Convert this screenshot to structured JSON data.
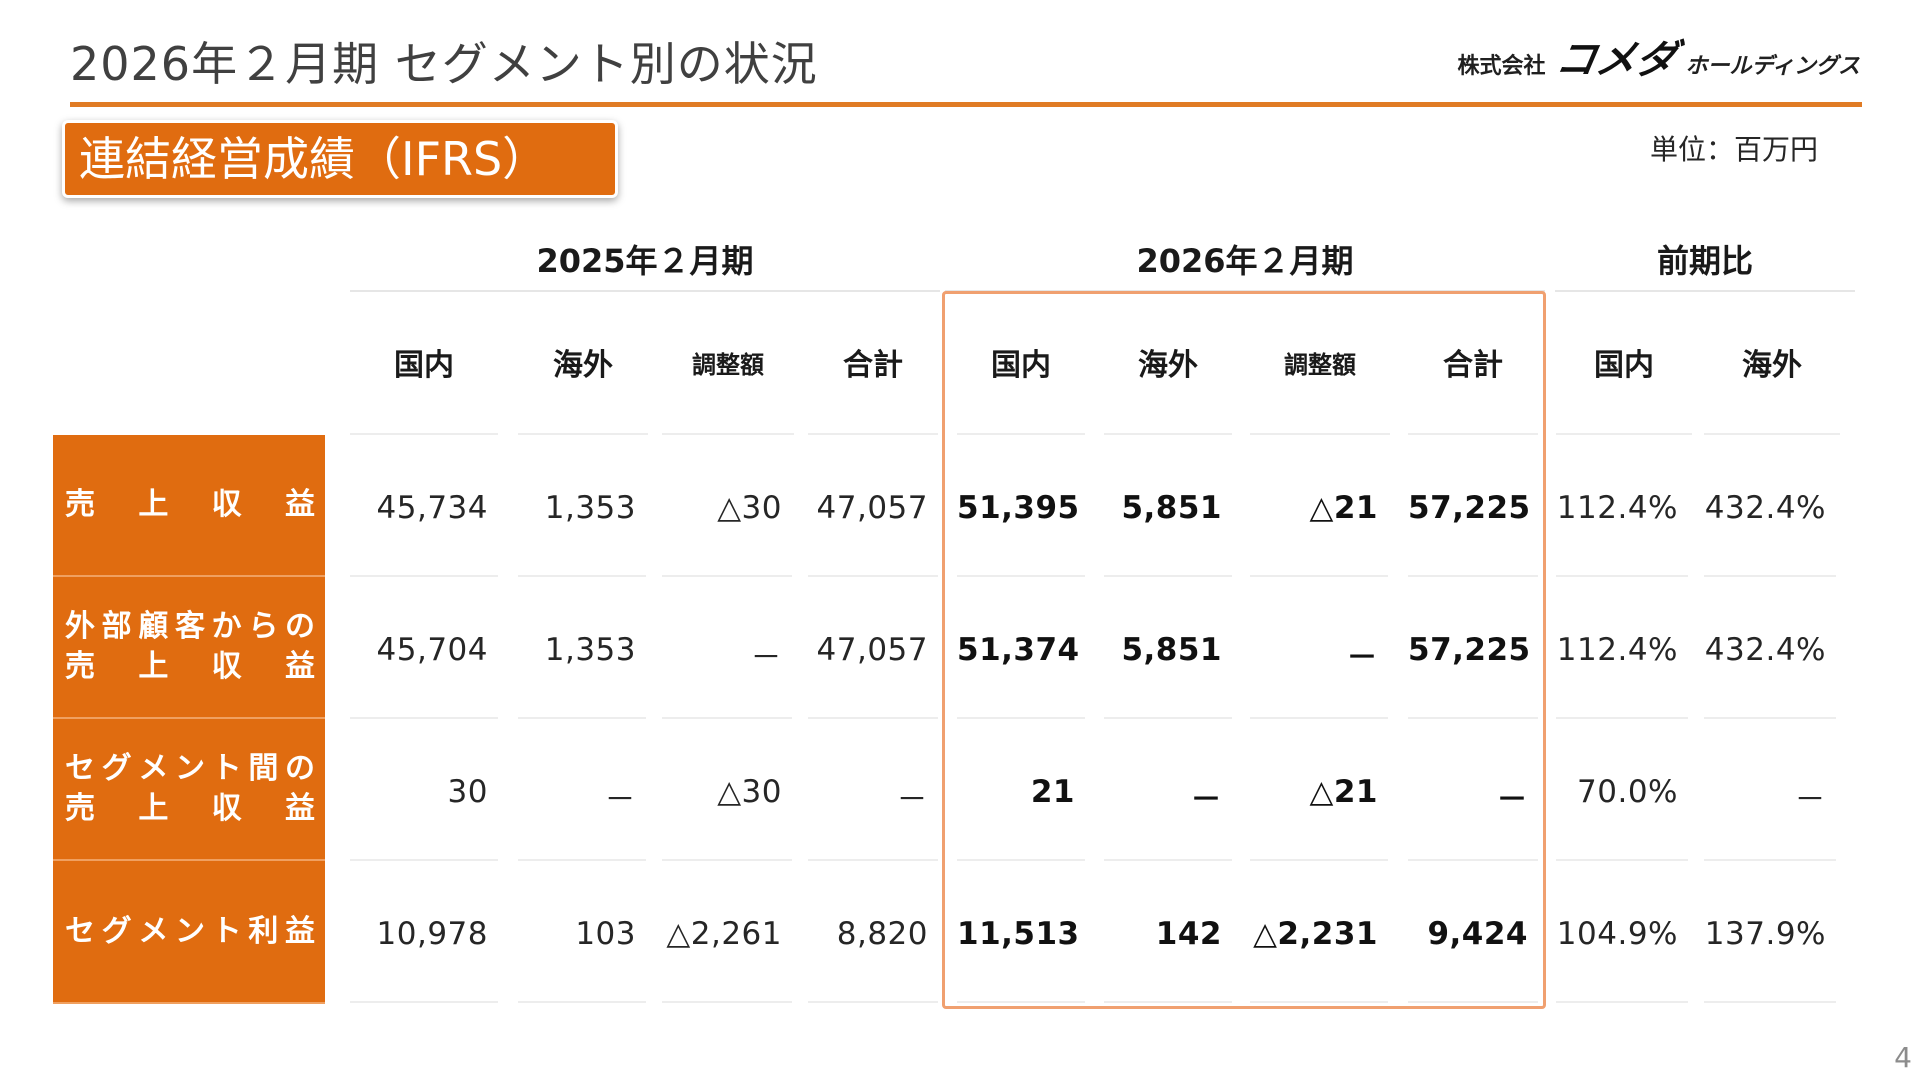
{
  "header": {
    "title": "2026年２月期 セグメント別の状況",
    "logo_company": "株式会社",
    "logo_brand": "コメダ",
    "logo_suffix": "ホールディングス"
  },
  "section_label": "連結経営成績（IFRS）",
  "unit": "単位：百万円",
  "table": {
    "group_headers": [
      "2025年２月期",
      "2026年２月期",
      "前期比"
    ],
    "column_headers": [
      "国内",
      "海外",
      "調整額",
      "合計",
      "国内",
      "海外",
      "調整額",
      "合計",
      "国内",
      "海外"
    ],
    "rows": [
      {
        "label_lines": [
          "売　上　収　益"
        ],
        "values": [
          "45,734",
          "1,353",
          "△30",
          "47,057",
          "51,395",
          "5,851",
          "△21",
          "57,225",
          "112.4%",
          "432.4%"
        ]
      },
      {
        "label_lines": [
          "外部顧客からの",
          "売　上　収　益"
        ],
        "values": [
          "45,704",
          "1,353",
          "－",
          "47,057",
          "51,374",
          "5,851",
          "－",
          "57,225",
          "112.4%",
          "432.4%"
        ]
      },
      {
        "label_lines": [
          "セグメント間の",
          "売　上　収　益"
        ],
        "values": [
          "30",
          "－",
          "△30",
          "－",
          "21",
          "－",
          "△21",
          "－",
          "70.0%",
          "－"
        ]
      },
      {
        "label_lines": [
          "セグメント利益"
        ],
        "values": [
          "10,978",
          "103",
          "△2,261",
          "8,820",
          "11,513",
          "142",
          "△2,231",
          "9,424",
          "104.9%",
          "137.9%"
        ]
      }
    ]
  },
  "accent_color": "#e06c10",
  "highlight_border_color": "#f0a070",
  "page_number": "4"
}
